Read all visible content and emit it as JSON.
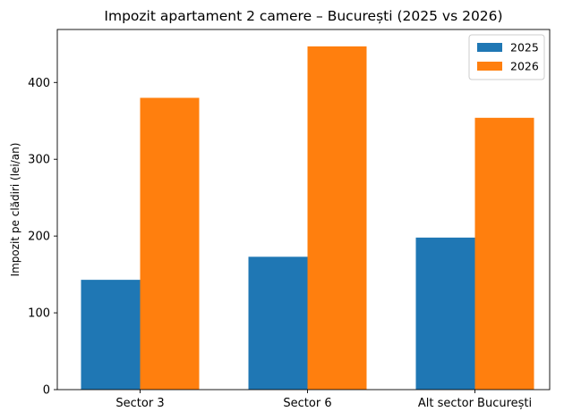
{
  "chart_data": {
    "type": "bar",
    "title": "Impozit apartament 2 camere – București (2025 vs 2026)",
    "xlabel": "",
    "ylabel": "Impozit pe clădiri (lei/an)",
    "categories": [
      "Sector 3",
      "Sector 6",
      "Alt sector București"
    ],
    "series": [
      {
        "name": "2025",
        "values": [
          143,
          173,
          198
        ],
        "color": "#1f77b4"
      },
      {
        "name": "2026",
        "values": [
          380,
          447,
          354
        ],
        "color": "#ff7f0e"
      }
    ],
    "ylim": [
      0,
      469
    ],
    "yticks": [
      0,
      100,
      200,
      300,
      400
    ],
    "grid": false,
    "legend_position": "top-right"
  }
}
